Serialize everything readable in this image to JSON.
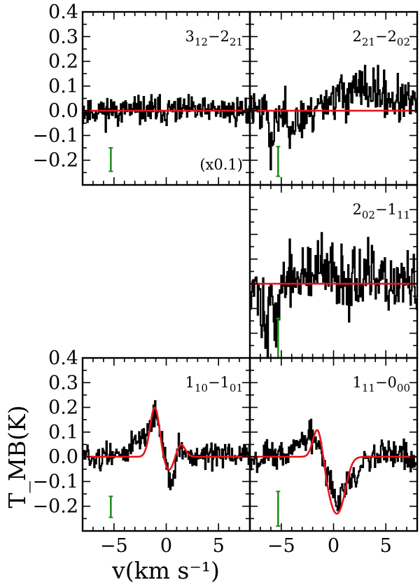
{
  "chart_data": {
    "type": "line",
    "xlabel": "v(km s⁻¹)",
    "ylabel": "T_MB(K)",
    "xlim": [
      -8,
      8
    ],
    "ylim": [
      -0.3,
      0.4
    ],
    "xticks": [
      "−5",
      "0",
      "5"
    ],
    "yticks": [
      "0.4",
      "0.3",
      "0.2",
      "0.1",
      "0.0",
      "−0.1",
      "−0.2"
    ],
    "grid": false,
    "series_colors": {
      "observed": "#000000",
      "model": "#e8141a",
      "errorbar": "#1a8a1a"
    },
    "panels": [
      {
        "row": 0,
        "col": 0,
        "label": {
          "main": "3",
          "sub1": "12",
          "dash": "−2",
          "sub2": "21"
        },
        "note": "(x0.1)",
        "errorbar": {
          "x": -5.3,
          "y_low": -0.245,
          "y_high": -0.15
        },
        "observed": {
          "seed": 11,
          "noise": 0.028,
          "baseline": 0.0,
          "features": []
        },
        "model": {
          "features": []
        }
      },
      {
        "row": 0,
        "col": 1,
        "label": {
          "main": "2",
          "sub1": "21",
          "dash": "−2",
          "sub2": "02"
        },
        "note": "",
        "errorbar": {
          "x": -5.3,
          "y_low": -0.265,
          "y_high": -0.145
        },
        "observed": {
          "seed": 23,
          "noise": 0.045,
          "baseline": 0.02,
          "features": [
            {
              "center": -5.9,
              "width": 0.25,
              "amp": -0.17
            },
            {
              "center": -3.5,
              "width": 1.2,
              "amp": -0.07
            },
            {
              "center": 2.5,
              "width": 2.5,
              "amp": 0.06
            }
          ]
        },
        "model": {
          "features": []
        }
      },
      {
        "row": 1,
        "col": 1,
        "label": {
          "main": "2",
          "sub1": "02",
          "dash": "−1",
          "sub2": "11"
        },
        "note": "",
        "errorbar": {
          "x": -5.3,
          "y_low": -0.3,
          "y_high": -0.14
        },
        "observed": {
          "seed": 37,
          "noise": 0.065,
          "baseline": 0.0,
          "features": [
            {
              "center": -6.5,
              "width": 0.35,
              "amp": -0.18
            },
            {
              "center": -5.5,
              "width": 0.25,
              "amp": -0.16
            },
            {
              "center": -1.0,
              "width": 2.5,
              "amp": 0.04
            }
          ]
        },
        "model": {
          "features": []
        }
      },
      {
        "row": 2,
        "col": 0,
        "label": {
          "main": "1",
          "sub1": "10",
          "dash": "−1",
          "sub2": "01"
        },
        "note": "",
        "errorbar": {
          "x": -5.3,
          "y_low": -0.245,
          "y_high": -0.16
        },
        "observed": {
          "seed": 51,
          "noise": 0.025,
          "baseline": 0.0,
          "features": [
            {
              "center": -1.0,
              "width": 0.55,
              "amp": 0.16
            },
            {
              "center": -2.6,
              "width": 0.9,
              "amp": 0.07
            },
            {
              "center": 0.2,
              "width": 0.45,
              "amp": -0.06
            },
            {
              "center": 1.2,
              "width": 0.5,
              "amp": 0.05
            },
            {
              "center": 0.6,
              "width": 0.3,
              "amp": -0.09
            }
          ]
        },
        "model": {
          "features": [
            {
              "center": -1.1,
              "width": 0.45,
              "amp": 0.2
            },
            {
              "center": 0.25,
              "width": 0.45,
              "amp": -0.055
            },
            {
              "center": 1.4,
              "width": 0.42,
              "amp": 0.05
            }
          ]
        }
      },
      {
        "row": 2,
        "col": 1,
        "label": {
          "main": "1",
          "sub1": "11",
          "dash": "−0",
          "sub2": "00"
        },
        "note": "",
        "errorbar": {
          "x": -5.3,
          "y_low": -0.28,
          "y_high": -0.14
        },
        "observed": {
          "seed": 67,
          "noise": 0.03,
          "baseline": 0.0,
          "features": [
            {
              "center": -2.0,
              "width": 1.2,
              "amp": 0.09
            },
            {
              "center": 0.1,
              "width": 0.7,
              "amp": -0.17
            },
            {
              "center": 1.4,
              "width": 0.6,
              "amp": -0.07
            },
            {
              "center": 2.3,
              "width": 0.3,
              "amp": -0.08
            }
          ]
        },
        "model": {
          "features": [
            {
              "center": -1.5,
              "width": 0.45,
              "amp": 0.125
            },
            {
              "center": 0.15,
              "width": 0.75,
              "amp": -0.21
            },
            {
              "center": 0.9,
              "width": 0.5,
              "amp": -0.05
            }
          ]
        }
      }
    ]
  }
}
